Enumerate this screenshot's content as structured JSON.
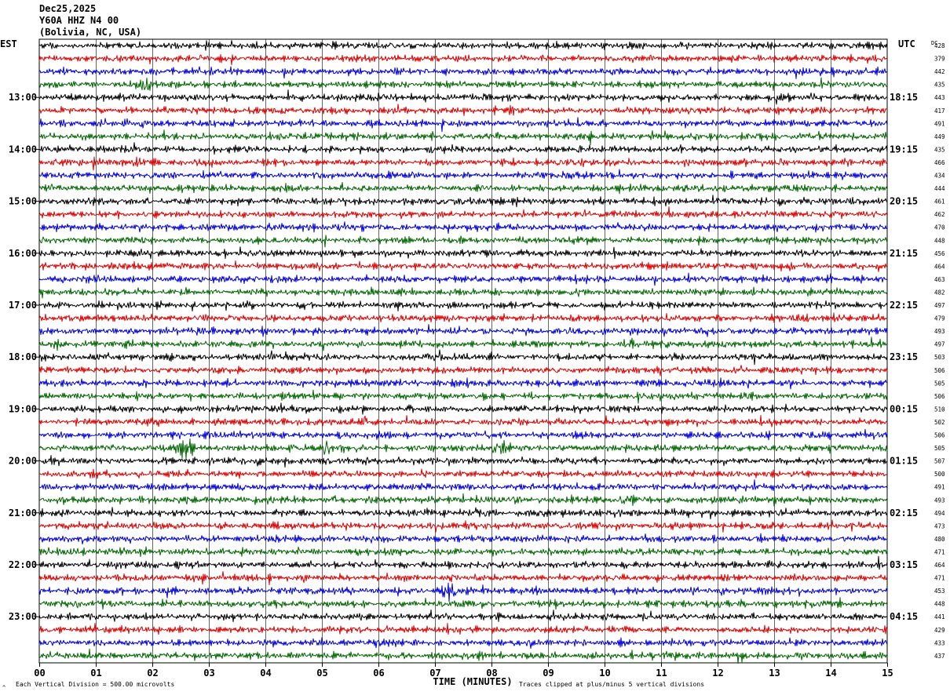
{
  "header": {
    "date": "Dec25,2025",
    "station": "Y60A HHZ N4 00",
    "location": "(Bolivia, NC, USA)"
  },
  "left_tz": "EST",
  "right_tz": "UTC",
  "dc_label": "DC",
  "footer": {
    "scale_note": "Each Vertical Division =  500.00 microvolts",
    "x_title": "TIME (MINUTES)",
    "clip_note": "Traces clipped at plus/minus 5 vertical divisions",
    "corner_mark": "^"
  },
  "colors": {
    "trace_cycle": [
      "#000000",
      "#dd0000",
      "#0000dd",
      "#006600"
    ],
    "grid": "#000000"
  },
  "chart_data": {
    "type": "line",
    "title": "Y60A HHZ N4 00",
    "xlabel": "TIME (MINUTES)",
    "xlim": [
      0,
      15
    ],
    "x_ticks": [
      "00",
      "01",
      "02",
      "03",
      "04",
      "05",
      "06",
      "07",
      "08",
      "09",
      "10",
      "11",
      "12",
      "13",
      "14",
      "15"
    ],
    "left_hour_labels": [
      "13:00",
      "14:00",
      "15:00",
      "16:00",
      "17:00",
      "18:00",
      "19:00",
      "20:00",
      "21:00",
      "22:00",
      "23:00"
    ],
    "right_hour_labels": [
      "18:15",
      "19:15",
      "20:15",
      "21:15",
      "22:15",
      "23:15",
      "00:15",
      "01:15",
      "02:15",
      "03:15",
      "04:15"
    ],
    "dc_offsets": [
      428,
      379,
      442,
      435,
      443,
      417,
      491,
      449,
      435,
      466,
      434,
      444,
      461,
      462,
      470,
      448,
      456,
      464,
      463,
      482,
      497,
      479,
      493,
      497,
      503,
      506,
      505,
      506,
      510,
      502,
      506,
      505,
      507,
      500,
      491,
      493,
      494,
      473,
      480,
      471,
      464,
      471,
      453,
      448,
      441,
      429,
      433,
      437
    ],
    "rows_per_hour": 4,
    "first_labeled_row": 4,
    "events": [
      {
        "row": 31,
        "minute": 2.6,
        "amplitude": 1.6
      },
      {
        "row": 31,
        "minute": 8.15,
        "amplitude": 1.3
      },
      {
        "row": 31,
        "minute": 5.1,
        "amplitude": 0.9
      },
      {
        "row": 3,
        "minute": 1.9,
        "amplitude": 0.8
      },
      {
        "row": 42,
        "minute": 7.25,
        "amplitude": 0.8
      },
      {
        "row": 35,
        "minute": 10.4,
        "amplitude": 0.7
      }
    ]
  }
}
